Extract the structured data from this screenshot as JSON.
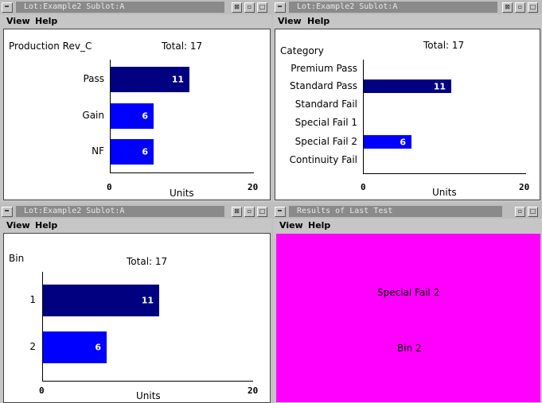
{
  "windows": {
    "prod": {
      "title": "Lot:Example2  Sublot:A",
      "menu": [
        "View",
        "Help"
      ],
      "chart_title": "Production Rev_C",
      "total": "Total: 17",
      "x_axis_label": "Units",
      "x_ticks": [
        "0",
        "20"
      ]
    },
    "category": {
      "title": "Lot:Example2  Sublot:A",
      "menu": [
        "View",
        "Help"
      ],
      "chart_title": "Category",
      "total": "Total: 17",
      "x_axis_label": "Units",
      "x_ticks": [
        "0",
        "20"
      ]
    },
    "bin": {
      "title": "Lot:Example2  Sublot:A",
      "menu": [
        "View",
        "Help"
      ],
      "chart_title": "Bin",
      "total": "Total: 17",
      "x_axis_label": "Units",
      "x_ticks": [
        "0",
        "20"
      ]
    },
    "results": {
      "title": "Results of Last Test",
      "menu": [
        "View",
        "Help"
      ],
      "line1": "Special Fail 2",
      "line2": "Bin 2"
    }
  },
  "chart_data": [
    {
      "type": "bar",
      "orientation": "horizontal",
      "title": "Production Rev_C",
      "xlabel": "Units",
      "xlim": [
        0,
        20
      ],
      "categories": [
        "Pass",
        "Gain",
        "NF"
      ],
      "values": [
        11,
        6,
        6
      ],
      "colors": [
        "#000080",
        "#0000ff",
        "#0000ff"
      ]
    },
    {
      "type": "bar",
      "orientation": "horizontal",
      "title": "Category",
      "xlabel": "Units",
      "xlim": [
        0,
        20
      ],
      "categories": [
        "Premium Pass",
        "Standard Pass",
        "Standard Fail",
        "Special Fail 1",
        "Special Fail 2",
        "Continuity Fail"
      ],
      "values": [
        0,
        11,
        0,
        0,
        6,
        0
      ],
      "colors": [
        "#000080",
        "#000080",
        "#0000ff",
        "#0000ff",
        "#0000ff",
        "#0000ff"
      ]
    },
    {
      "type": "bar",
      "orientation": "horizontal",
      "title": "Bin",
      "xlabel": "Units",
      "xlim": [
        0,
        20
      ],
      "categories": [
        "1",
        "2"
      ],
      "values": [
        11,
        6
      ],
      "colors": [
        "#000080",
        "#0000ff"
      ]
    }
  ],
  "theme": {
    "result_bg": "#ff00ff",
    "pass_color": "#000080",
    "fail_color": "#0000ff"
  }
}
